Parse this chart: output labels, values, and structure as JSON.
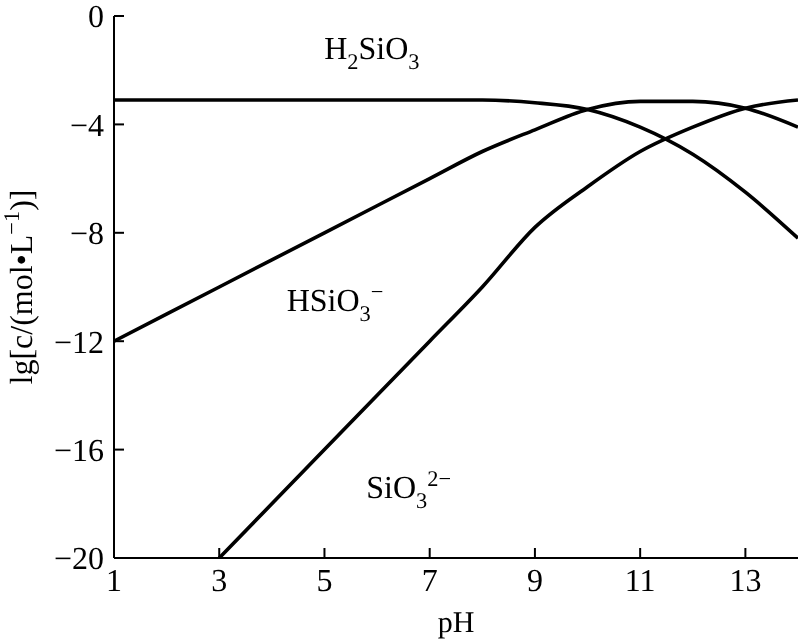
{
  "chart_data": {
    "type": "line",
    "xlabel": "pH",
    "ylabel": "lg[c/(mol•L$^{−1}$)]",
    "xlim": [
      1,
      14
    ],
    "xticks": [
      1,
      3,
      5,
      7,
      9,
      11,
      13
    ],
    "ylim": [
      -20,
      0
    ],
    "yticks": [
      0,
      -4,
      -8,
      -12,
      -16,
      -20
    ],
    "marker": "none",
    "line_style": "solid",
    "series": [
      {
        "name": "H$_{2}$SiO$_{3}$",
        "color": "#000000",
        "x": [
          1,
          3,
          5,
          7,
          8,
          9,
          10,
          11,
          12,
          13,
          14
        ],
        "values": [
          -3.1,
          -3.1,
          -3.1,
          -3.1,
          -3.1,
          -3.2,
          -3.45,
          -4.1,
          -5.1,
          -6.5,
          -8.2
        ]
      },
      {
        "name": "HSiO$_{3}$$^{−}$",
        "color": "#000000",
        "x": [
          1,
          3,
          5,
          7,
          8,
          9,
          10,
          11,
          12,
          13,
          14
        ],
        "values": [
          -12,
          -10,
          -8,
          -6,
          -5,
          -4.2,
          -3.45,
          -3.15,
          -3.15,
          -3.4,
          -4.1
        ]
      },
      {
        "name": "SiO$_{3}$$^{2−}$",
        "color": "#000000",
        "x": [
          3,
          5,
          7,
          8,
          9,
          10,
          11,
          12,
          13,
          14
        ],
        "values": [
          -20,
          -16,
          -12,
          -10,
          -7.8,
          -6.3,
          -5.0,
          -4.1,
          -3.4,
          -3.1
        ]
      }
    ]
  }
}
